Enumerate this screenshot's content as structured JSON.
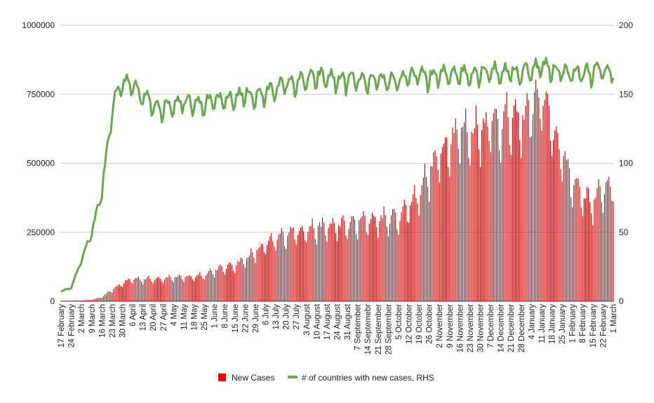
{
  "chart_data": {
    "type": "bar+line",
    "title": "",
    "left_axis": {
      "min": 0,
      "max": 1000000,
      "ticks": [
        "0",
        "250000",
        "500000",
        "750000",
        "1000000"
      ]
    },
    "right_axis": {
      "min": 0,
      "max": 200,
      "ticks": [
        "0",
        "50",
        "100",
        "150",
        "200"
      ]
    },
    "grid": "horizontal",
    "legend_position": "bottom",
    "x_tick_labels": [
      "17 February",
      "24 February",
      "2 March",
      "9 March",
      "16 March",
      "23 March",
      "30 March",
      "6 April",
      "13 April",
      "20 April",
      "27 April",
      "4 May",
      "11 May",
      "18 May",
      "25 May",
      "1 June",
      "8 June",
      "15 June",
      "22 June",
      "29 June",
      "6 July",
      "13 July",
      "20 July",
      "27 July",
      "3 August",
      "10 August",
      "17 August",
      "24 August",
      "31 August",
      "7 September",
      "14 Septemebr",
      "21 September",
      "28 September",
      "5 October",
      "12 October",
      "19 October",
      "26 October",
      "2 November",
      "9 November",
      "16 November",
      "23 November",
      "30 November",
      "7 December",
      "14 December",
      "21 December",
      "28 December",
      "4 January",
      "11 January",
      "18 January",
      "25 January",
      "1 February",
      "8 February",
      "15 February",
      "22 February",
      "1 March"
    ],
    "days_total": 379,
    "series": [
      {
        "name": "New Cases",
        "type": "bar",
        "axis": "left",
        "color": "#cc0000",
        "weekly_values": [
          1000,
          2000,
          2500,
          5000,
          15000,
          40000,
          65000,
          80000,
          78000,
          80000,
          82000,
          85000,
          85000,
          88000,
          95000,
          110000,
          120000,
          130000,
          150000,
          175000,
          200000,
          220000,
          240000,
          250000,
          255000,
          260000,
          265000,
          270000,
          270000,
          280000,
          290000,
          290000,
          295000,
          300000,
          340000,
          390000,
          460000,
          520000,
          580000,
          610000,
          600000,
          620000,
          640000,
          640000,
          650000,
          640000,
          700000,
          730000,
          620000,
          520000,
          430000,
          380000,
          350000,
          400000,
          420000
        ]
      },
      {
        "name": "# of countries with new cases, RHS",
        "type": "line",
        "axis": "right",
        "color": "#6aa84f",
        "weekly_values": [
          7,
          10,
          30,
          50,
          80,
          140,
          158,
          155,
          148,
          142,
          140,
          143,
          145,
          145,
          142,
          145,
          145,
          147,
          150,
          148,
          150,
          155,
          157,
          158,
          160,
          162,
          162,
          160,
          160,
          160,
          158,
          159,
          160,
          160,
          162,
          164,
          162,
          163,
          165,
          165,
          164,
          166,
          167,
          165,
          166,
          165,
          168,
          170,
          168,
          166,
          165,
          165,
          166,
          167,
          165
        ]
      }
    ]
  }
}
